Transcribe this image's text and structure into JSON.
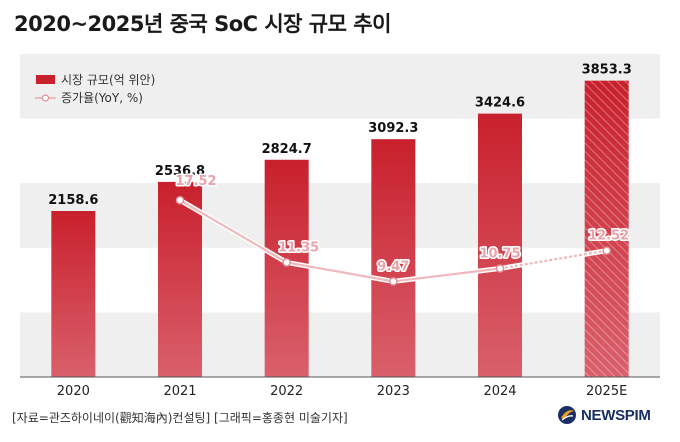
{
  "chart_data": {
    "type": "bar+line",
    "title": "2020~2025년 중국 SoC 시장 규모 추이",
    "categories": [
      "2020",
      "2021",
      "2022",
      "2023",
      "2024",
      "2025E"
    ],
    "series": [
      {
        "name": "시장 규모(억 위안)",
        "type": "bar",
        "values": [
          2158.6,
          2536.8,
          2824.7,
          3092.3,
          3424.6,
          3853.3
        ],
        "value_labels": [
          "2158.6",
          "2536.8",
          "2824.7",
          "3092.3",
          "3424.6",
          "3853.3"
        ]
      },
      {
        "name": "증가율(YoY, %)",
        "type": "line",
        "x": [
          "2021",
          "2022",
          "2023",
          "2024",
          "2025E"
        ],
        "values": [
          17.52,
          11.35,
          9.47,
          10.75,
          12.52
        ],
        "value_labels": [
          "17.52",
          "11.35",
          "9.47",
          "10.75",
          "12.52"
        ]
      }
    ],
    "bar_ylim": [
      0,
      4200
    ],
    "line_ylim": [
      0,
      32
    ],
    "legend_position": "top-left",
    "grid": "alternating horizontal bands",
    "colors": {
      "bar": "#c8202c",
      "line": "#f0b8bc",
      "band": "#efefef",
      "axis": "#555555"
    }
  },
  "footer": {
    "source": "[자료=관즈하이네이(觀知海內)컨설팅] [그래픽=홍종현 미술기자]",
    "logo_text": "NEWSPIM"
  }
}
